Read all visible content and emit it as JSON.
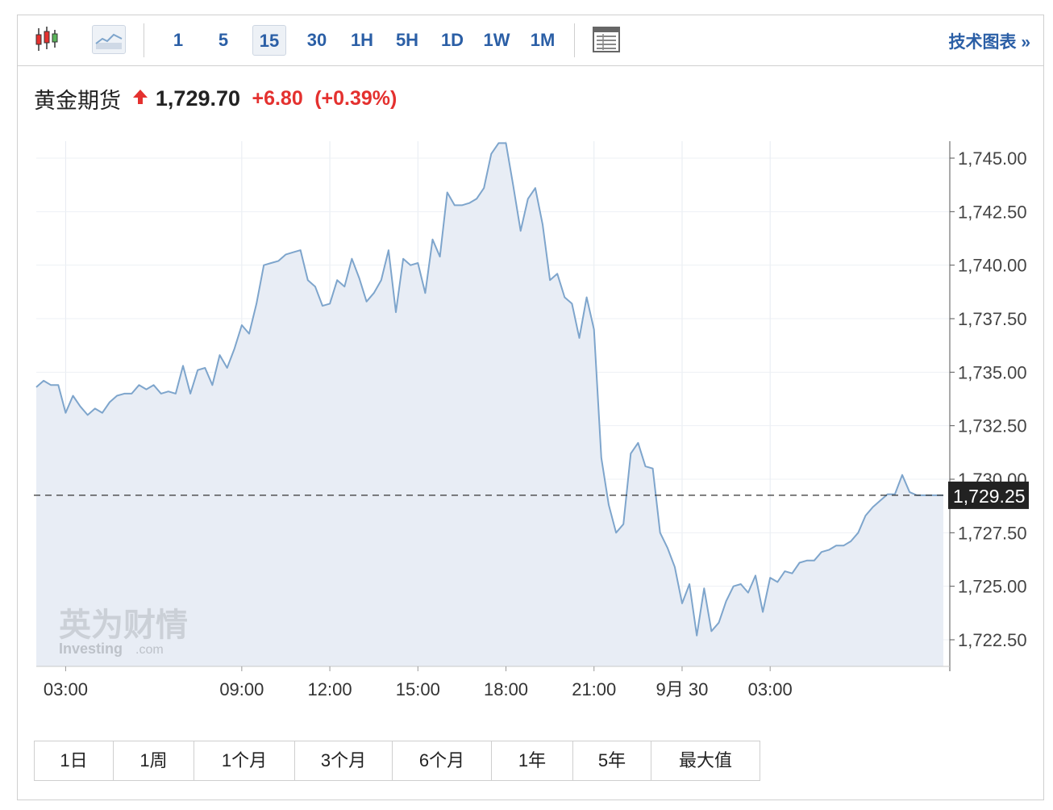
{
  "toolbar": {
    "intervals": [
      "1",
      "5",
      "15",
      "30",
      "1H",
      "5H",
      "1D",
      "1W",
      "1M"
    ],
    "active_interval": "15",
    "tech_chart_label": "技术图表 »"
  },
  "quote": {
    "name": "黄金期货",
    "price": "1,729.70",
    "change": "+6.80",
    "change_pct": "(+0.39%)",
    "up_color": "#e4312f"
  },
  "watermark": {
    "cn": "英为财情",
    "en": "Investing",
    "en_suffix": ".com"
  },
  "ranges": [
    "1日",
    "1周",
    "1个月",
    "3个月",
    "6个月",
    "1年",
    "5年",
    "最大值"
  ],
  "chart_data": {
    "type": "area",
    "title": "",
    "xlabel": "",
    "ylabel": "",
    "ylim": [
      1721.5,
      1746.5
    ],
    "y_ticks": [
      "1,722.50",
      "1,725.00",
      "1,727.50",
      "1,730.00",
      "1,732.50",
      "1,735.00",
      "1,737.50",
      "1,740.00",
      "1,742.50",
      "1,745.00"
    ],
    "y_tick_values": [
      1722.5,
      1725,
      1727.5,
      1730,
      1732.5,
      1735,
      1737.5,
      1740,
      1742.5,
      1745
    ],
    "x_ticks": [
      {
        "label": "03:00",
        "hour": 3
      },
      {
        "label": "09:00",
        "hour": 9
      },
      {
        "label": "12:00",
        "hour": 12
      },
      {
        "label": "15:00",
        "hour": 15
      },
      {
        "label": "18:00",
        "hour": 18
      },
      {
        "label": "21:00",
        "hour": 21
      },
      {
        "label": "9月 30",
        "hour": 24
      },
      {
        "label": "03:00",
        "hour": 27
      }
    ],
    "x_range_hours": [
      2,
      32.9
    ],
    "last_price": 1729.25,
    "last_price_label": "1,729.25",
    "line_color": "#7ea5cc",
    "fill_color": "#e8edf5",
    "series": [
      {
        "x": [
          2,
          2.25,
          2.5,
          2.75,
          3.0,
          3.25,
          3.5,
          3.75,
          4.0,
          4.25,
          4.5,
          4.75,
          5.0,
          5.25,
          5.5,
          5.75,
          6.0,
          6.25,
          6.5,
          6.75,
          7.0,
          7.25,
          7.5,
          7.75,
          8.0,
          8.25,
          8.5,
          8.75,
          9.0,
          9.25,
          9.5,
          9.75,
          10.0,
          10.25,
          10.5,
          10.75,
          11.0,
          11.25,
          11.5,
          11.75,
          12.0,
          12.25,
          12.5,
          12.75,
          13.0,
          13.25,
          13.5,
          13.75,
          14.0,
          14.25,
          14.5,
          14.75,
          15.0,
          15.25,
          15.5,
          15.75,
          16.0,
          16.25,
          16.5,
          16.75,
          17.0,
          17.25,
          17.5,
          17.75,
          18.0,
          18.25,
          18.5,
          18.75,
          19.0,
          19.25,
          19.5,
          19.75,
          20.0,
          20.25,
          20.5,
          20.75,
          21.0,
          21.25,
          21.5,
          21.75,
          22.0,
          22.25,
          22.5,
          22.75,
          23.0,
          23.25,
          23.5,
          23.75,
          24.0,
          24.25,
          24.5,
          24.75,
          25.0,
          25.25,
          25.5,
          25.75,
          26.0,
          26.25,
          26.5,
          26.75,
          27.0,
          27.25,
          27.5,
          27.75,
          28.0,
          28.25,
          28.5,
          28.75,
          29.0,
          29.25,
          29.5,
          29.75,
          30.0,
          30.25,
          30.5,
          30.75,
          31.0,
          31.25,
          31.5,
          31.75,
          32.0,
          32.25,
          32.5,
          32.75,
          32.9
        ],
        "values": [
          1734.3,
          1734.6,
          1734.4,
          1734.4,
          1733.1,
          1733.9,
          1733.4,
          1733.0,
          1733.3,
          1733.1,
          1733.6,
          1733.9,
          1734.0,
          1734.0,
          1734.4,
          1734.2,
          1734.4,
          1734.0,
          1734.1,
          1734.0,
          1735.3,
          1734.0,
          1735.1,
          1735.2,
          1734.4,
          1735.8,
          1735.2,
          1736.1,
          1737.2,
          1736.8,
          1738.2,
          1740.0,
          1740.1,
          1740.2,
          1740.5,
          1740.6,
          1740.7,
          1739.3,
          1739.0,
          1738.1,
          1738.2,
          1739.3,
          1739.0,
          1740.3,
          1739.4,
          1738.3,
          1738.7,
          1739.3,
          1740.7,
          1737.8,
          1740.3,
          1740.0,
          1740.1,
          1738.7,
          1741.2,
          1740.4,
          1743.4,
          1742.8,
          1742.8,
          1742.9,
          1743.1,
          1743.6,
          1745.2,
          1745.7,
          1745.7,
          1743.7,
          1741.6,
          1743.1,
          1743.6,
          1741.9,
          1739.3,
          1739.6,
          1738.5,
          1738.2,
          1736.6,
          1738.5,
          1737.0,
          1731.0,
          1728.8,
          1727.5,
          1727.9,
          1731.2,
          1731.7,
          1730.6,
          1730.5,
          1727.5,
          1726.8,
          1725.9,
          1724.2,
          1725.1,
          1722.7,
          1724.9,
          1722.9,
          1723.3,
          1724.3,
          1725.0,
          1725.1,
          1724.7,
          1725.5,
          1723.8,
          1725.4,
          1725.2,
          1725.7,
          1725.6,
          1726.1,
          1726.2,
          1726.2,
          1726.6,
          1726.7,
          1726.9,
          1726.9,
          1727.1,
          1727.5,
          1728.3,
          1728.7,
          1729.0,
          1729.3,
          1729.3,
          1730.2,
          1729.4,
          1729.25,
          1729.25,
          1729.25,
          1729.25,
          1729.25
        ]
      }
    ]
  }
}
